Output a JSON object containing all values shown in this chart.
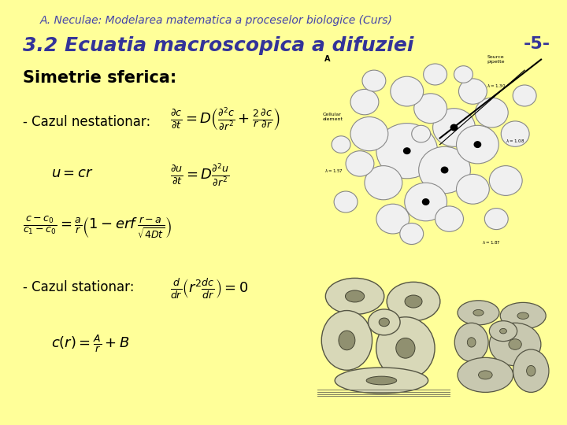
{
  "bg_color": "#FFFF99",
  "header_text": "A. Neculae: Modelarea matematica a proceselor biologice (Curs)",
  "header_color": "#4444AA",
  "header_fontsize": 10,
  "title_text": "3.2 Ecuatia macroscopica a difuziei",
  "title_color": "#333399",
  "title_fontsize": 18,
  "page_num": "-5-",
  "page_num_color": "#333399",
  "page_num_fontsize": 16,
  "section_title": "Simetrie sferica:",
  "section_fontsize": 15,
  "section_color": "#000000",
  "label1": "- Cazul nestationar:",
  "label2": "- Cazul stationar:",
  "label_fontsize": 12,
  "eq_fontsize": 13
}
